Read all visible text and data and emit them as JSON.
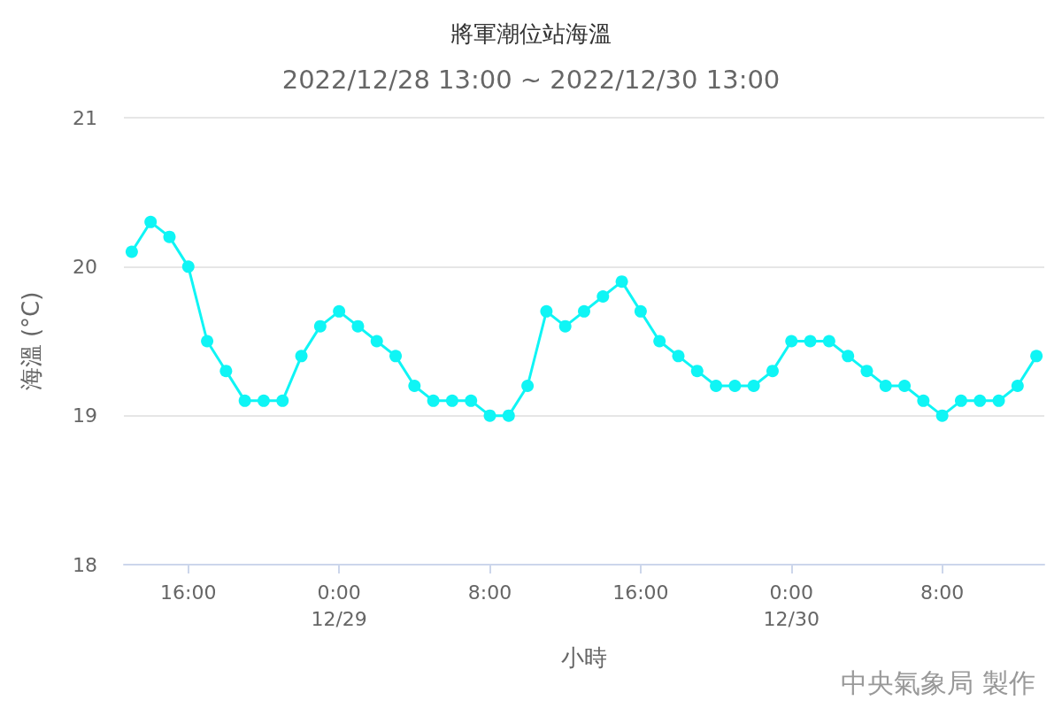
{
  "chart_data": {
    "type": "line",
    "title": "將軍潮位站海溫",
    "subtitle": "2022/12/28 13:00 ~ 2022/12/30 13:00",
    "xlabel": "小時",
    "ylabel": "海溫 (°C)",
    "x": [
      "2022-12-28T13:00",
      "2022-12-28T14:00",
      "2022-12-28T15:00",
      "2022-12-28T16:00",
      "2022-12-28T17:00",
      "2022-12-28T18:00",
      "2022-12-28T19:00",
      "2022-12-28T20:00",
      "2022-12-28T21:00",
      "2022-12-28T22:00",
      "2022-12-28T23:00",
      "2022-12-29T00:00",
      "2022-12-29T01:00",
      "2022-12-29T02:00",
      "2022-12-29T03:00",
      "2022-12-29T04:00",
      "2022-12-29T05:00",
      "2022-12-29T06:00",
      "2022-12-29T07:00",
      "2022-12-29T08:00",
      "2022-12-29T09:00",
      "2022-12-29T10:00",
      "2022-12-29T11:00",
      "2022-12-29T12:00",
      "2022-12-29T13:00",
      "2022-12-29T14:00",
      "2022-12-29T15:00",
      "2022-12-29T16:00",
      "2022-12-29T17:00",
      "2022-12-29T18:00",
      "2022-12-29T19:00",
      "2022-12-29T20:00",
      "2022-12-29T21:00",
      "2022-12-29T22:00",
      "2022-12-29T23:00",
      "2022-12-30T00:00",
      "2022-12-30T01:00",
      "2022-12-30T02:00",
      "2022-12-30T03:00",
      "2022-12-30T04:00",
      "2022-12-30T05:00",
      "2022-12-30T06:00",
      "2022-12-30T07:00",
      "2022-12-30T08:00",
      "2022-12-30T09:00",
      "2022-12-30T10:00",
      "2022-12-30T11:00",
      "2022-12-30T12:00",
      "2022-12-30T13:00"
    ],
    "series": [
      {
        "color": "#0ff5f5",
        "values": [
          20.1,
          20.3,
          20.2,
          20.0,
          19.5,
          19.3,
          19.1,
          19.1,
          19.1,
          19.4,
          19.6,
          19.7,
          19.6,
          19.5,
          19.4,
          19.2,
          19.1,
          19.1,
          19.1,
          19.0,
          19.0,
          19.2,
          19.7,
          19.6,
          19.7,
          19.8,
          19.9,
          19.7,
          19.5,
          19.4,
          19.3,
          19.2,
          19.2,
          19.2,
          19.3,
          19.5,
          19.5,
          19.5,
          19.4,
          19.3,
          19.2,
          19.2,
          19.1,
          19.0,
          19.1,
          19.1,
          19.1,
          19.2,
          19.4
        ]
      }
    ],
    "xlim": [
      "2022-12-28T12:35",
      "2022-12-30T13:25"
    ],
    "xticks": [
      {
        "value": "2022-12-28T16:00",
        "label": "16:00"
      },
      {
        "value": "2022-12-29T00:00",
        "label": "0:00\n12/29"
      },
      {
        "value": "2022-12-29T08:00",
        "label": "8:00"
      },
      {
        "value": "2022-12-29T16:00",
        "label": "16:00"
      },
      {
        "value": "2022-12-30T00:00",
        "label": "0:00\n12/30"
      },
      {
        "value": "2022-12-30T08:00",
        "label": "8:00"
      }
    ],
    "ylim": [
      18,
      21
    ],
    "yticks": [
      18,
      19,
      20,
      21
    ],
    "grid": "y",
    "marker": "circle",
    "line_style": "solid",
    "annotations": [
      "中央氣象局 製作"
    ]
  }
}
